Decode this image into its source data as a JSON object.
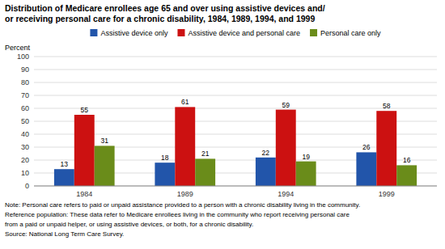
{
  "chart_data": {
    "type": "bar",
    "title": [
      "Distribution of Medicare enrollees age 65 and over using assistive devices and/",
      "or receiving personal care for a chronic disability, 1984, 1989, 1994, and 1999"
    ],
    "y_label": "Percent",
    "categories": [
      "1984",
      "1989",
      "1994",
      "1999"
    ],
    "series": [
      {
        "name": "Assistive device only",
        "color": "#2255aa",
        "values": [
          13,
          18,
          22,
          26
        ]
      },
      {
        "name": "Assistive device and personal care",
        "color": "#cc1111",
        "values": [
          55,
          61,
          59,
          58
        ]
      },
      {
        "name": "Personal care only",
        "color": "#6a8c1a",
        "values": [
          31,
          21,
          19,
          16
        ]
      }
    ],
    "ylim": [
      0,
      100
    ],
    "yticks": [
      0,
      10,
      20,
      30,
      40,
      50,
      60,
      70,
      80,
      90,
      100
    ],
    "grid": true,
    "legend": "top",
    "data_labels": true,
    "annotations": [
      "Note: Personal care refers to paid or unpaid assistance provided to a person with a chronic disability living in the community.",
      "Reference population: These data refer to Medicare enrollees living in the community who report receiving personal care",
      "from a paid or unpaid helper, or using assistive devices, or both, for a chronic disability.",
      "Source: National Long Term Care Survey."
    ]
  }
}
